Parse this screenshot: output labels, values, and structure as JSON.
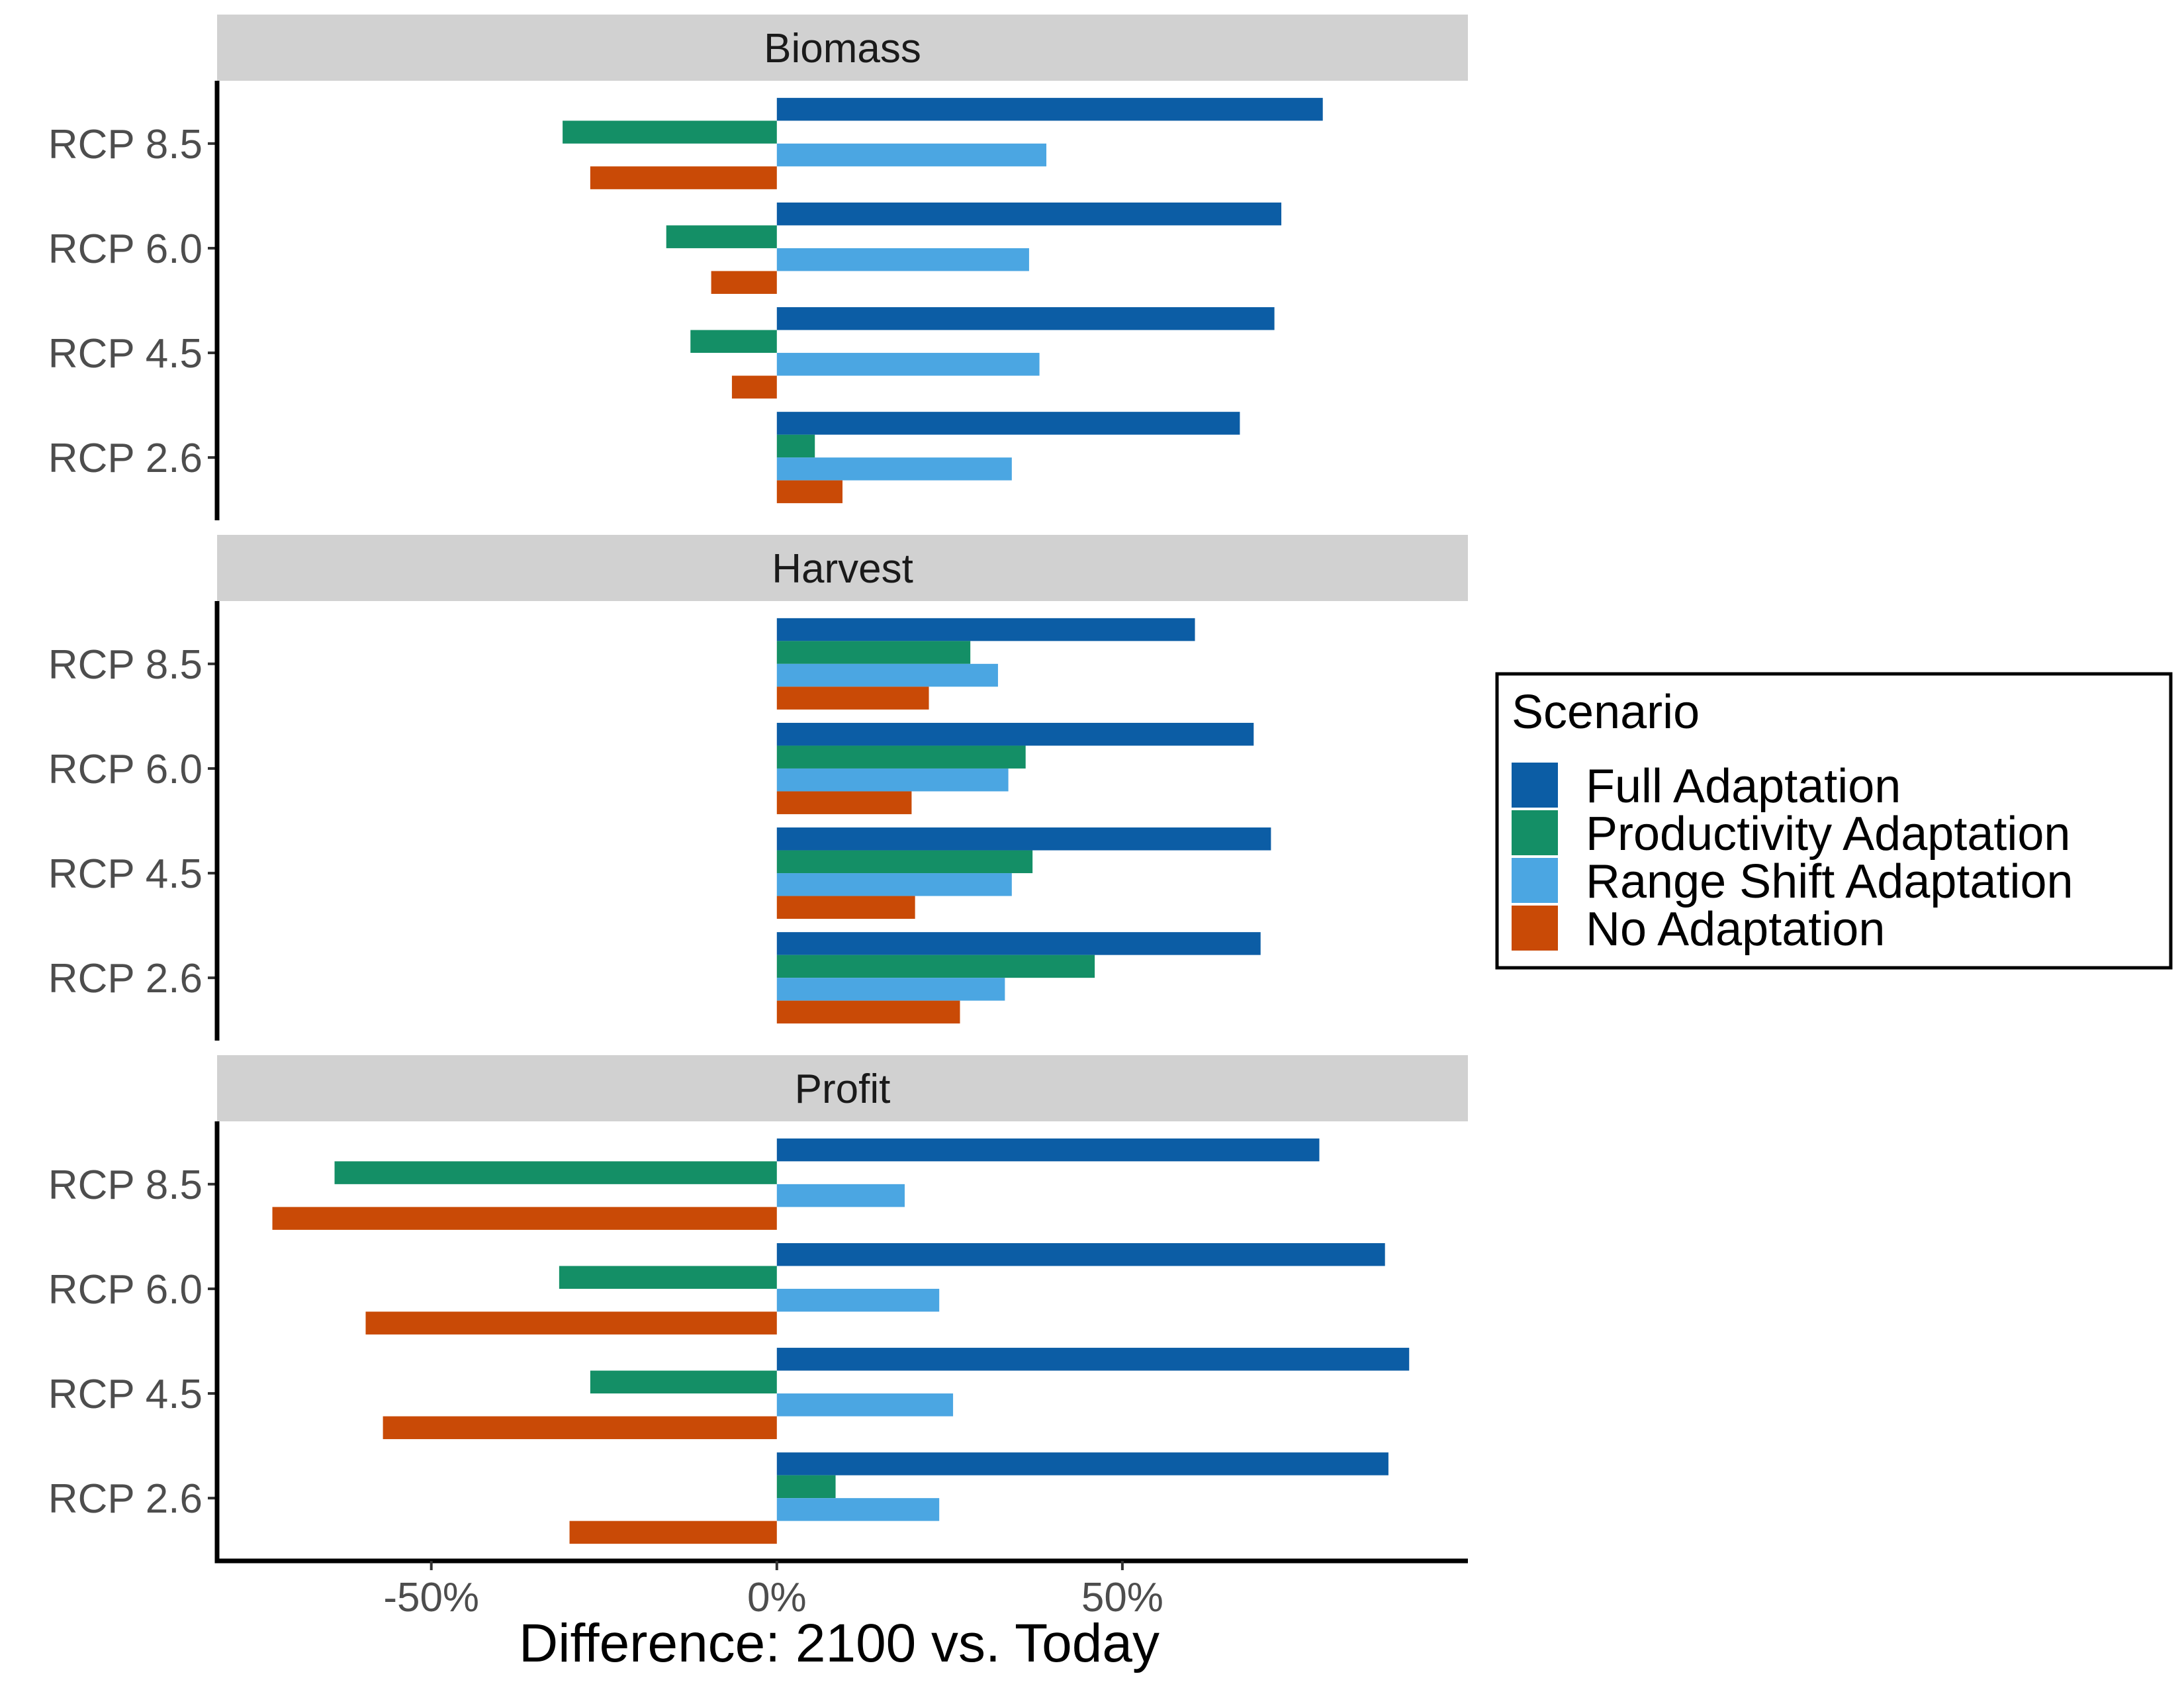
{
  "chart_data": {
    "type": "bar",
    "orientation": "horizontal",
    "facet_by": "panel",
    "panels": [
      {
        "title": "Biomass",
        "categories": [
          "RCP 2.6",
          "RCP 4.5",
          "RCP 6.0",
          "RCP 8.5"
        ],
        "series": [
          {
            "name": "Full Adaptation",
            "values": [
              67,
              72,
              73,
              79
            ]
          },
          {
            "name": "Productivity Adaptation",
            "values": [
              5.5,
              -12.5,
              -16,
              -31
            ]
          },
          {
            "name": "Range Shift Adaptation",
            "values": [
              34,
              38,
              36.5,
              39
            ]
          },
          {
            "name": "No Adaptation",
            "values": [
              9.5,
              -6.5,
              -9.5,
              -27
            ]
          }
        ]
      },
      {
        "title": "Harvest",
        "categories": [
          "RCP 2.6",
          "RCP 4.5",
          "RCP 6.0",
          "RCP 8.5"
        ],
        "series": [
          {
            "name": "Full Adaptation",
            "values": [
              70,
              71.5,
              69,
              60.5
            ]
          },
          {
            "name": "Productivity Adaptation",
            "values": [
              46,
              37,
              36,
              28
            ]
          },
          {
            "name": "Range Shift Adaptation",
            "values": [
              33,
              34,
              33.5,
              32
            ]
          },
          {
            "name": "No Adaptation",
            "values": [
              26.5,
              20,
              19.5,
              22
            ]
          }
        ]
      },
      {
        "title": "Profit",
        "categories": [
          "RCP 2.6",
          "RCP 4.5",
          "RCP 6.0",
          "RCP 8.5"
        ],
        "series": [
          {
            "name": "Full Adaptation",
            "values": [
              88.5,
              91.5,
              88,
              78.5
            ]
          },
          {
            "name": "Productivity Adaptation",
            "values": [
              8.5,
              -27,
              -31.5,
              -64
            ]
          },
          {
            "name": "Range Shift Adaptation",
            "values": [
              23.5,
              25.5,
              23.5,
              18.5
            ]
          },
          {
            "name": "No Adaptation",
            "values": [
              -30,
              -57,
              -59.5,
              -73
            ]
          }
        ]
      }
    ],
    "xlabel": "Difference: 2100 vs. Today",
    "ylabel": "",
    "xlim": [
      -81,
      100
    ],
    "x_ticks": [
      -50,
      0,
      50
    ],
    "x_tick_labels": [
      "-50%",
      "0%",
      "50%"
    ],
    "grid": false,
    "legend": {
      "title": "Scenario",
      "position": "right",
      "entries": [
        {
          "label": "Full Adaptation",
          "color": "#0c5da5"
        },
        {
          "label": "Productivity Adaptation",
          "color": "#148f66"
        },
        {
          "label": "Range Shift Adaptation",
          "color": "#4ba6e2"
        },
        {
          "label": "No Adaptation",
          "color": "#c94a06"
        }
      ]
    }
  }
}
